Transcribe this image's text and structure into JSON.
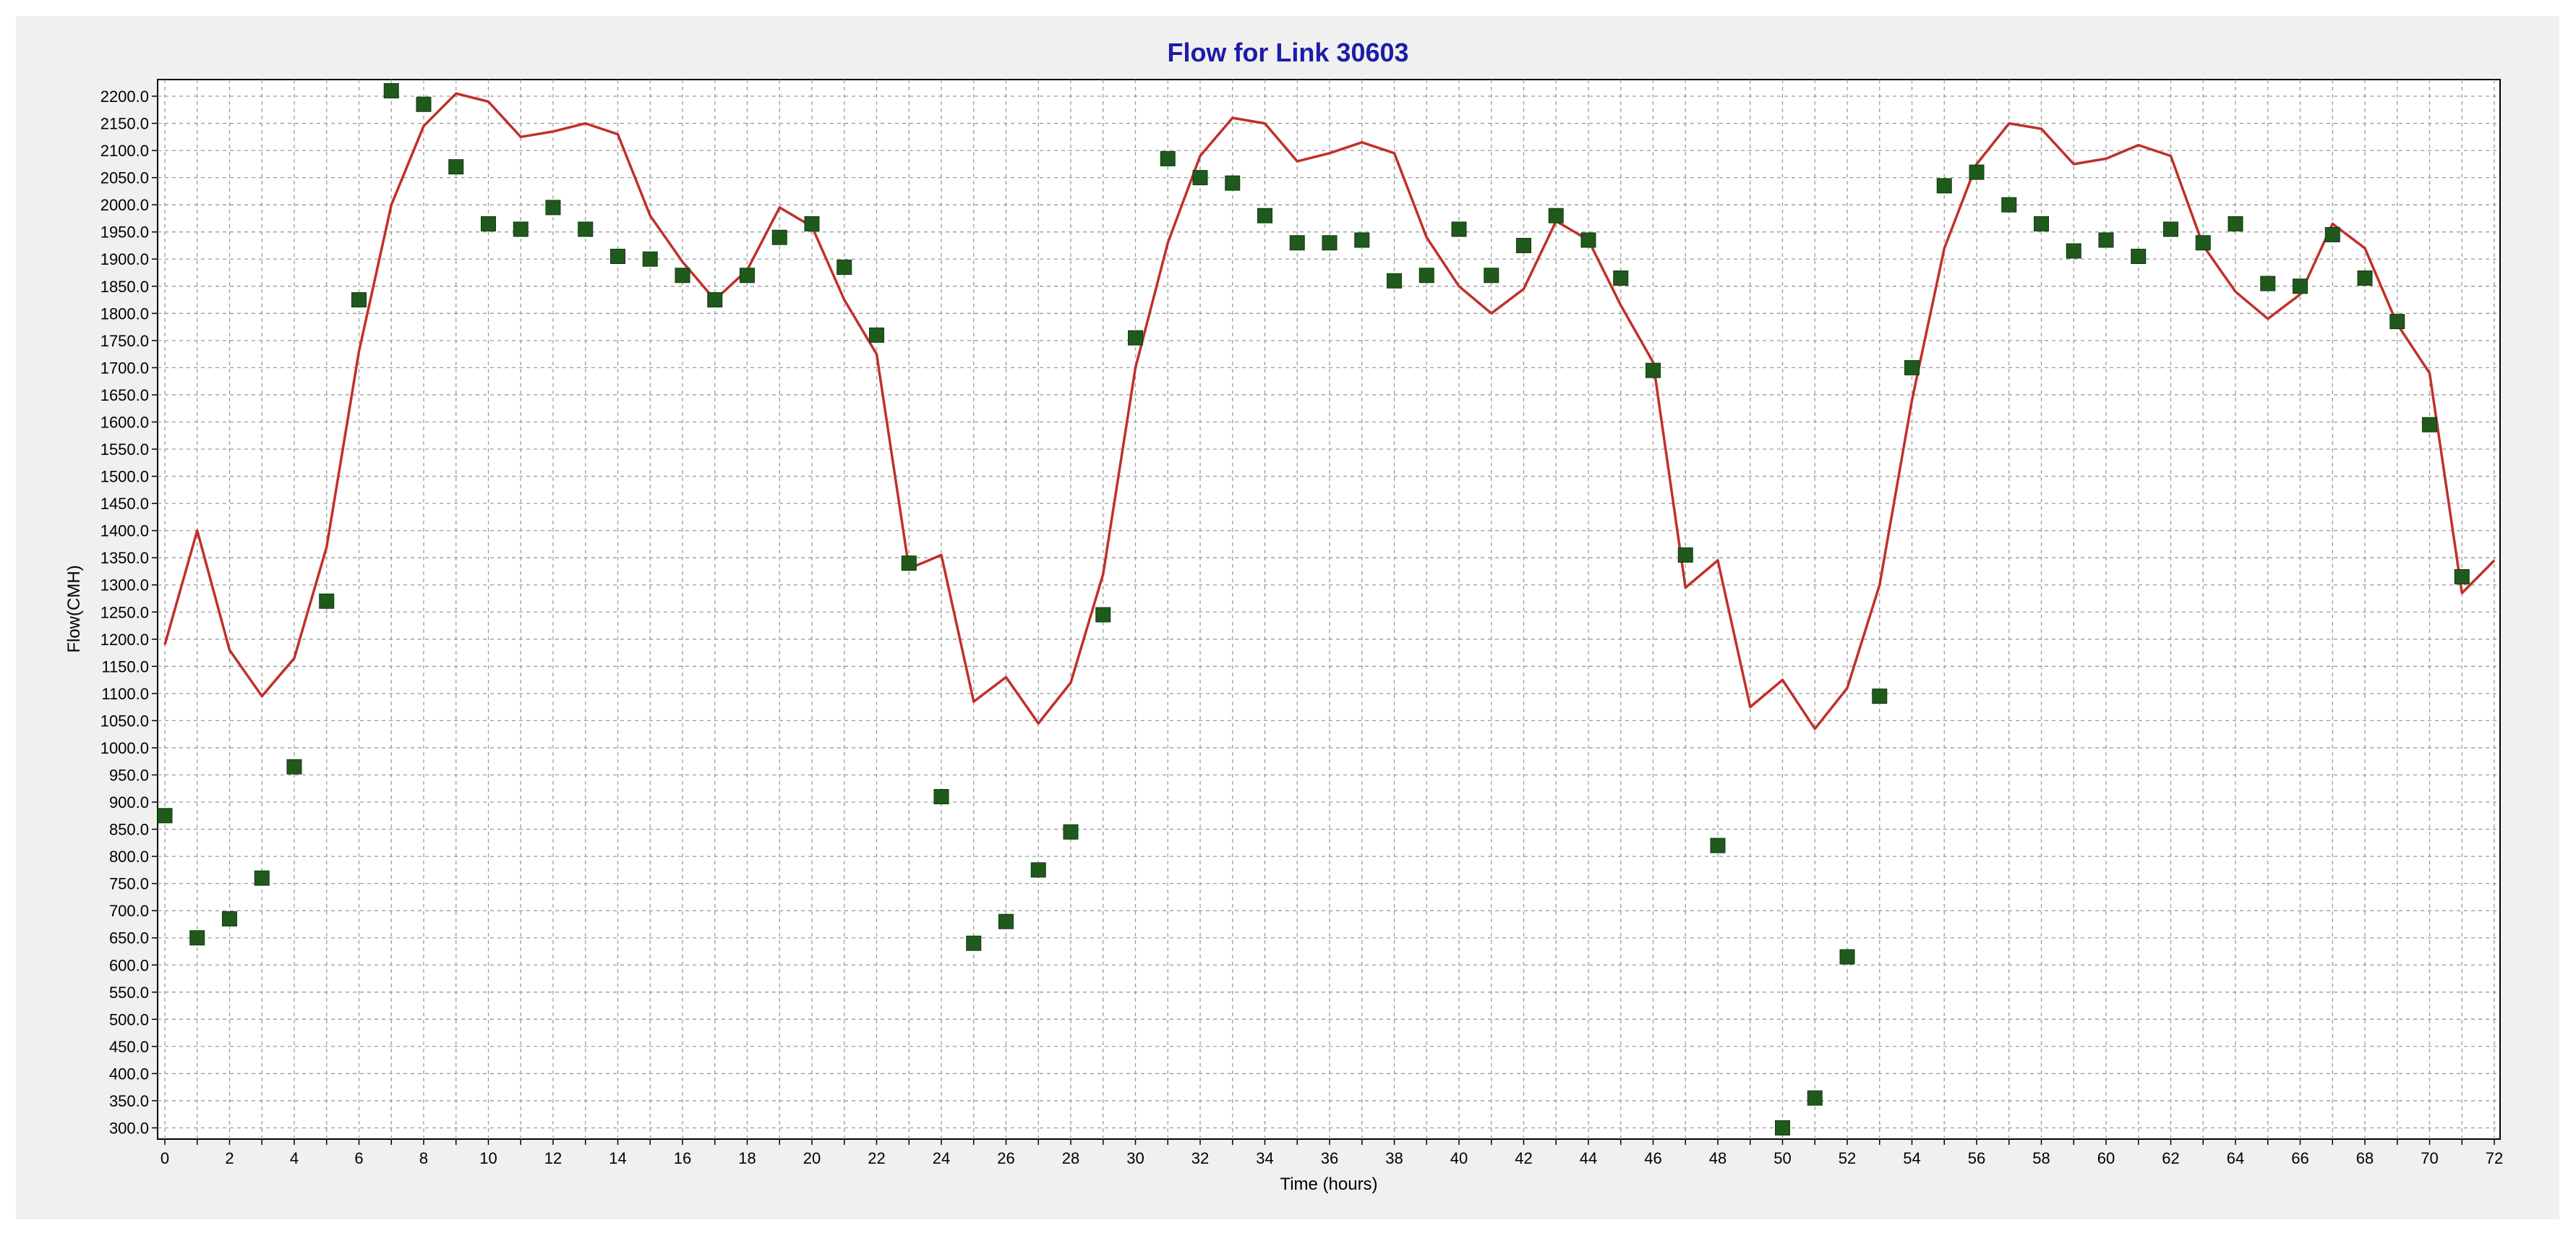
{
  "chart_data": {
    "type": "line",
    "title": "Flow for Link 30603",
    "xlabel": "Time (hours)",
    "ylabel": "Flow(CMH)",
    "xlim": [
      0,
      72
    ],
    "ylim": [
      290,
      2220
    ],
    "x_ticks": [
      0,
      2,
      4,
      6,
      8,
      10,
      12,
      14,
      16,
      18,
      20,
      22,
      24,
      26,
      28,
      30,
      32,
      34,
      36,
      38,
      40,
      42,
      44,
      46,
      48,
      50,
      52,
      54,
      56,
      58,
      60,
      62,
      64,
      66,
      68,
      70,
      72
    ],
    "y_ticks": [
      300,
      350,
      400,
      450,
      500,
      550,
      600,
      650,
      700,
      750,
      800,
      850,
      900,
      950,
      1000,
      1050,
      1100,
      1150,
      1200,
      1250,
      1300,
      1350,
      1400,
      1450,
      1500,
      1550,
      1600,
      1650,
      1700,
      1750,
      1800,
      1850,
      1900,
      1950,
      2000,
      2050,
      2100,
      2150,
      2200
    ],
    "grid": true,
    "series": [
      {
        "type": "line",
        "color": "#c0302a",
        "x": [
          0,
          1,
          2,
          3,
          4,
          5,
          6,
          7,
          8,
          9,
          10,
          11,
          12,
          13,
          14,
          15,
          16,
          17,
          18,
          19,
          20,
          21,
          22,
          23,
          24,
          25,
          26,
          27,
          28,
          29,
          30,
          31,
          32,
          33,
          34,
          35,
          36,
          37,
          38,
          39,
          40,
          41,
          42,
          43,
          44,
          45,
          46,
          47,
          48,
          49,
          50,
          51,
          52,
          53,
          54,
          55,
          56,
          57,
          58,
          59,
          60,
          61,
          62,
          63,
          64,
          65,
          66,
          67,
          68,
          69,
          70,
          71,
          72
        ],
        "values": [
          1190,
          1400,
          1180,
          1095,
          1165,
          1370,
          1730,
          2000,
          2145,
          2205,
          2190,
          2125,
          2135,
          2150,
          2130,
          1980,
          1895,
          1825,
          1880,
          1995,
          1960,
          1825,
          1725,
          1330,
          1355,
          1085,
          1130,
          1045,
          1120,
          1320,
          1700,
          1930,
          2090,
          2160,
          2150,
          2080,
          2095,
          2115,
          2095,
          1940,
          1850,
          1800,
          1845,
          1970,
          1935,
          1815,
          1710,
          1295,
          1345,
          1075,
          1125,
          1035,
          1110,
          1300,
          1640,
          1920,
          2075,
          2150,
          2140,
          2075,
          2085,
          2110,
          2090,
          1925,
          1840,
          1790,
          1835,
          1965,
          1920,
          1780,
          1690,
          1285,
          1345
        ]
      },
      {
        "type": "scatter",
        "color": "#1f5a1c",
        "x": [
          0,
          1,
          2,
          3,
          4,
          5,
          6,
          7,
          8,
          9,
          10,
          11,
          12,
          13,
          14,
          15,
          16,
          17,
          18,
          19,
          20,
          21,
          22,
          23,
          24,
          25,
          26,
          27,
          28,
          29,
          30,
          31,
          32,
          33,
          34,
          35,
          36,
          37,
          38,
          39,
          40,
          41,
          42,
          43,
          44,
          45,
          46,
          47,
          48,
          49,
          50,
          51,
          52,
          53,
          54,
          55,
          56,
          57,
          58,
          59,
          60,
          61,
          62,
          63,
          64,
          65,
          66,
          67,
          68,
          69,
          70,
          71
        ],
        "values": [
          875,
          650,
          685,
          760,
          965,
          1270,
          1825,
          2210,
          2185,
          2070,
          1965,
          1955,
          1995,
          1955,
          1905,
          1900,
          1870,
          1825,
          1870,
          1940,
          1965,
          1885,
          1760,
          1340,
          910,
          640,
          680,
          775,
          845,
          1245,
          1755,
          2085,
          2050,
          2040,
          1980,
          1930,
          1930,
          1935,
          1860,
          1870,
          1955,
          1870,
          1925,
          1980,
          1935,
          1865,
          1695,
          1355,
          820,
          null,
          300,
          355,
          615,
          1095,
          1700,
          2035,
          2060,
          2000,
          1965,
          1915,
          1935,
          1905,
          1955,
          1930,
          1965,
          1855,
          1850,
          1945,
          1865,
          1785,
          1595,
          1315
        ]
      }
    ]
  }
}
